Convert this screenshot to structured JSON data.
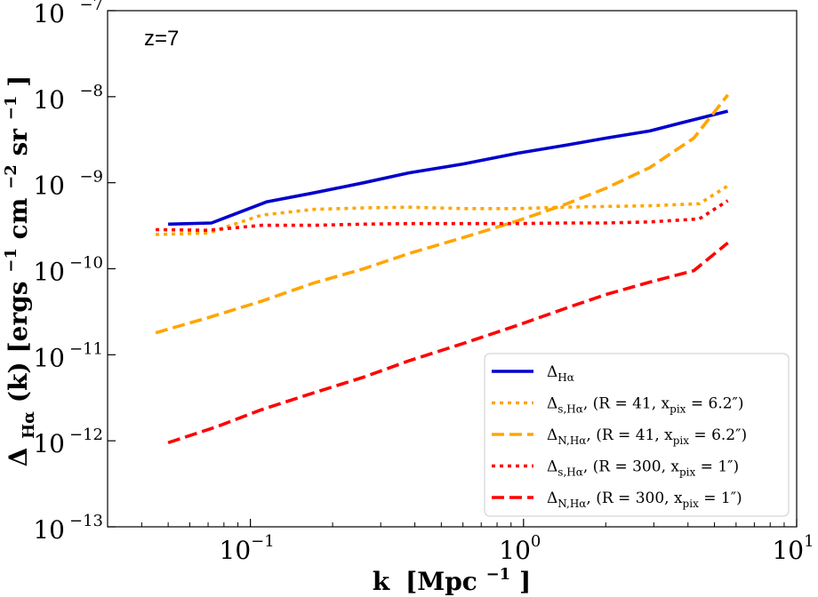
{
  "chart_data": {
    "type": "line",
    "xscale": "log",
    "yscale": "log",
    "xlim": [
      0.03,
      10
    ],
    "ylim": [
      1e-13,
      1e-07
    ],
    "annotation": "z=7",
    "xlabel": {
      "main": "k",
      "unit": "[Mpc",
      "unit_exp": "−1",
      "unit_close": "]"
    },
    "ylabel": {
      "main": "Δ",
      "sub": "Hα",
      "rest": " (k)  [ergs",
      "e1": "−1",
      "cm": "cm",
      "e2": "−2",
      "sr": "sr",
      "e3": "−1",
      "close": "]"
    },
    "x_ticks": [
      {
        "value": 0.1,
        "base": "10",
        "exp": "−1"
      },
      {
        "value": 1,
        "base": "10",
        "exp": "0"
      },
      {
        "value": 10,
        "base": "10",
        "exp": "1"
      }
    ],
    "y_ticks": [
      {
        "value": 1e-13,
        "base": "10",
        "exp": "−13"
      },
      {
        "value": 1e-12,
        "base": "10",
        "exp": "−12"
      },
      {
        "value": 1e-11,
        "base": "10",
        "exp": "−11"
      },
      {
        "value": 1e-10,
        "base": "10",
        "exp": "−10"
      },
      {
        "value": 1e-09,
        "base": "10",
        "exp": "−9"
      },
      {
        "value": 1e-08,
        "base": "10",
        "exp": "−8"
      },
      {
        "value": 1e-07,
        "base": "10",
        "exp": "−7"
      }
    ],
    "series": [
      {
        "name": "delta-halpha",
        "legend": {
          "sym": "Δ",
          "sub": "Hα",
          "rest": ""
        },
        "color": "#0000cc",
        "style": "solid",
        "x": [
          0.05,
          0.072,
          0.115,
          0.17,
          0.26,
          0.38,
          0.6,
          0.95,
          1.4,
          2.0,
          2.9,
          4.2,
          5.6
        ],
        "y": [
          3.3e-10,
          3.4e-10,
          6e-10,
          7.6e-10,
          1e-09,
          1.3e-09,
          1.65e-09,
          2.2e-09,
          2.7e-09,
          3.3e-09,
          4e-09,
          5.4e-09,
          6.8e-09
        ]
      },
      {
        "name": "delta-s-halpha-r41",
        "legend": {
          "sym": "Δ",
          "sub": "s,Hα",
          "rest": ", (R = 41, x",
          "sub2": "pix",
          "rest2": " = 6.2″)"
        },
        "color": "#ffa500",
        "style": "dotted",
        "x": [
          0.045,
          0.07,
          0.11,
          0.17,
          0.26,
          0.38,
          0.6,
          0.95,
          1.4,
          2.0,
          2.9,
          4.4,
          5.6
        ],
        "y": [
          2.5e-10,
          2.6e-10,
          4.2e-10,
          4.9e-10,
          5.1e-10,
          5.2e-10,
          5e-10,
          5e-10,
          5.2e-10,
          5.3e-10,
          5.4e-10,
          5.7e-10,
          9.2e-10
        ]
      },
      {
        "name": "delta-n-halpha-r41",
        "legend": {
          "sym": "Δ",
          "sub": "N,Hα",
          "rest": ", (R = 41, x",
          "sub2": "pix",
          "rest2": " = 6.2″)"
        },
        "color": "#ffa500",
        "style": "dashed",
        "x": [
          0.045,
          0.07,
          0.11,
          0.17,
          0.26,
          0.38,
          0.6,
          0.95,
          1.4,
          2.0,
          2.9,
          4.2,
          5.6
        ],
        "y": [
          1.8e-11,
          2.7e-11,
          4.2e-11,
          6.8e-11,
          1e-10,
          1.5e-10,
          2.3e-10,
          3.6e-10,
          5.5e-10,
          8.6e-10,
          1.5e-09,
          3.3e-09,
          1.05e-08
        ]
      },
      {
        "name": "delta-s-halpha-r300",
        "legend": {
          "sym": "Δ",
          "sub": "s,Hα",
          "rest": ", (R = 300, x",
          "sub2": "pix",
          "rest2": " = 1″)"
        },
        "color": "#ff0000",
        "style": "dotted",
        "x": [
          0.045,
          0.07,
          0.11,
          0.17,
          0.26,
          0.38,
          0.6,
          0.95,
          1.4,
          2.0,
          2.9,
          4.4,
          5.6
        ],
        "y": [
          2.85e-10,
          2.8e-10,
          3.2e-10,
          3.2e-10,
          3.3e-10,
          3.35e-10,
          3.35e-10,
          3.35e-10,
          3.4e-10,
          3.4e-10,
          3.5e-10,
          3.8e-10,
          6.2e-10
        ]
      },
      {
        "name": "delta-n-halpha-r300",
        "legend": {
          "sym": "Δ",
          "sub": "N,Hα",
          "rest": ", (R = 300, x",
          "sub2": "pix",
          "rest2": " = 1″)"
        },
        "color": "#ff0000",
        "style": "dashed",
        "x": [
          0.05,
          0.075,
          0.11,
          0.17,
          0.26,
          0.38,
          0.6,
          0.95,
          1.4,
          2.0,
          2.9,
          4.2,
          5.6
        ],
        "y": [
          9.5e-13,
          1.45e-12,
          2.3e-12,
          3.6e-12,
          5.5e-12,
          8.5e-12,
          1.35e-11,
          2.2e-11,
          3.4e-11,
          5e-11,
          7e-11,
          9.5e-11,
          2e-10
        ]
      }
    ]
  }
}
